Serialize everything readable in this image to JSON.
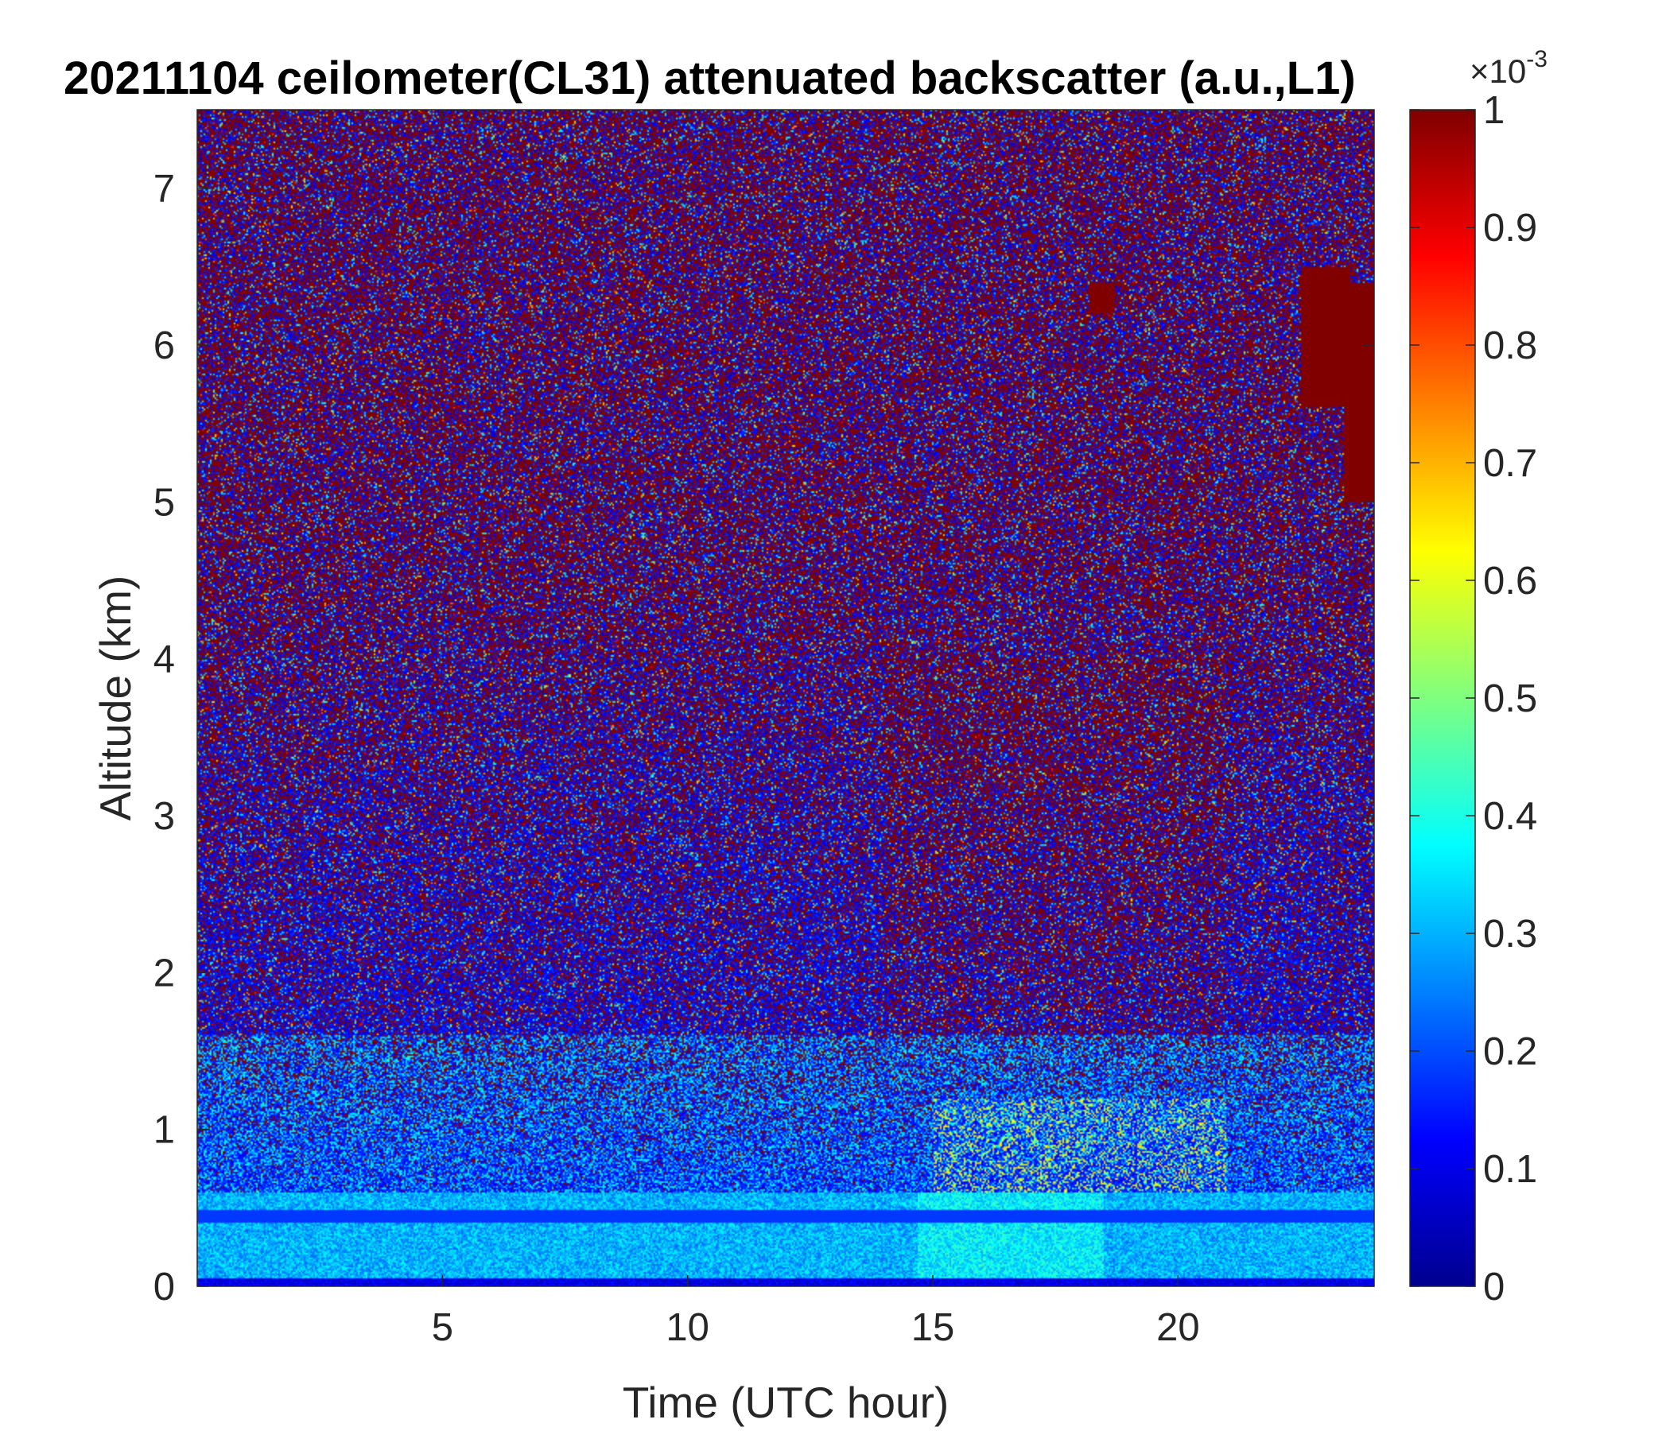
{
  "chart_data": {
    "type": "heatmap",
    "title": "20211104 ceilometer(CL31) attenuated backscatter (a.u.,L1)",
    "xlabel": "Time (UTC hour)",
    "ylabel": "Altitude (km)",
    "xlim": [
      0,
      24
    ],
    "ylim": [
      0,
      7.5
    ],
    "x_ticks": [
      "5",
      "10",
      "15",
      "20"
    ],
    "x_tick_values": [
      5,
      10,
      15,
      20
    ],
    "y_ticks": [
      "0",
      "1",
      "2",
      "3",
      "4",
      "5",
      "6",
      "7"
    ],
    "y_tick_values": [
      0,
      1,
      2,
      3,
      4,
      5,
      6,
      7
    ],
    "colorbar": {
      "colormap": "jet",
      "range": [
        0,
        1
      ],
      "ticks": [
        "0",
        "0.1",
        "0.2",
        "0.3",
        "0.4",
        "0.5",
        "0.6",
        "0.7",
        "0.8",
        "0.9",
        "1"
      ],
      "tick_values": [
        0,
        0.1,
        0.2,
        0.3,
        0.4,
        0.5,
        0.6,
        0.7,
        0.8,
        0.9,
        1
      ],
      "scale_factor_base": "×10",
      "scale_factor_exponent": "-3"
    },
    "grid": false,
    "features": {
      "cloud_patches_top_right": [
        {
          "x": [
            22.5,
            23.5
          ],
          "y": [
            5.6,
            6.5
          ]
        },
        {
          "x": [
            23.4,
            24.0
          ],
          "y": [
            5.0,
            6.4
          ]
        },
        {
          "x": [
            18.2,
            18.7
          ],
          "y": [
            6.2,
            6.4
          ]
        }
      ],
      "boundary_layer_top_km": 0.6,
      "enhanced_layer_x": [
        15,
        21
      ],
      "enhanced_layer_y": [
        0.4,
        1.2
      ]
    }
  }
}
